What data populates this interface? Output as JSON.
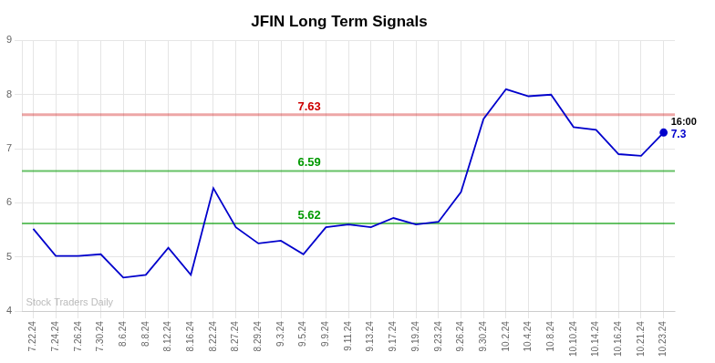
{
  "chart_data": {
    "type": "line",
    "title": "JFIN Long Term Signals",
    "categories": [
      "7.22.24",
      "7.24.24",
      "7.26.24",
      "7.30.24",
      "8.6.24",
      "8.8.24",
      "8.12.24",
      "8.16.24",
      "8.22.24",
      "8.27.24",
      "8.29.24",
      "9.3.24",
      "9.5.24",
      "9.9.24",
      "9.11.24",
      "9.13.24",
      "9.17.24",
      "9.19.24",
      "9.23.24",
      "9.26.24",
      "9.30.24",
      "10.2.24",
      "10.4.24",
      "10.8.24",
      "10.10.24",
      "10.14.24",
      "10.16.24",
      "10.21.24",
      "10.23.24"
    ],
    "values": [
      5.52,
      5.02,
      5.02,
      5.05,
      4.62,
      4.67,
      5.17,
      4.67,
      6.27,
      5.55,
      5.25,
      5.3,
      5.05,
      5.55,
      5.6,
      5.55,
      5.72,
      5.6,
      5.65,
      6.2,
      7.55,
      8.1,
      7.97,
      8.0,
      7.4,
      7.35,
      6.9,
      6.87,
      7.3
    ],
    "color": "#0000cc",
    "ylim": [
      4,
      9
    ],
    "yticks": [
      4,
      5,
      6,
      7,
      8,
      9
    ],
    "grid": true,
    "hlines": [
      {
        "value": 7.63,
        "label": "7.63",
        "color": "#cc0000"
      },
      {
        "value": 6.59,
        "label": "6.59",
        "color": "#009900"
      },
      {
        "value": 5.62,
        "label": "5.62",
        "color": "#009900"
      }
    ],
    "annotations": [
      "16:00",
      "7.3"
    ],
    "watermark": "Stock Traders Daily"
  }
}
